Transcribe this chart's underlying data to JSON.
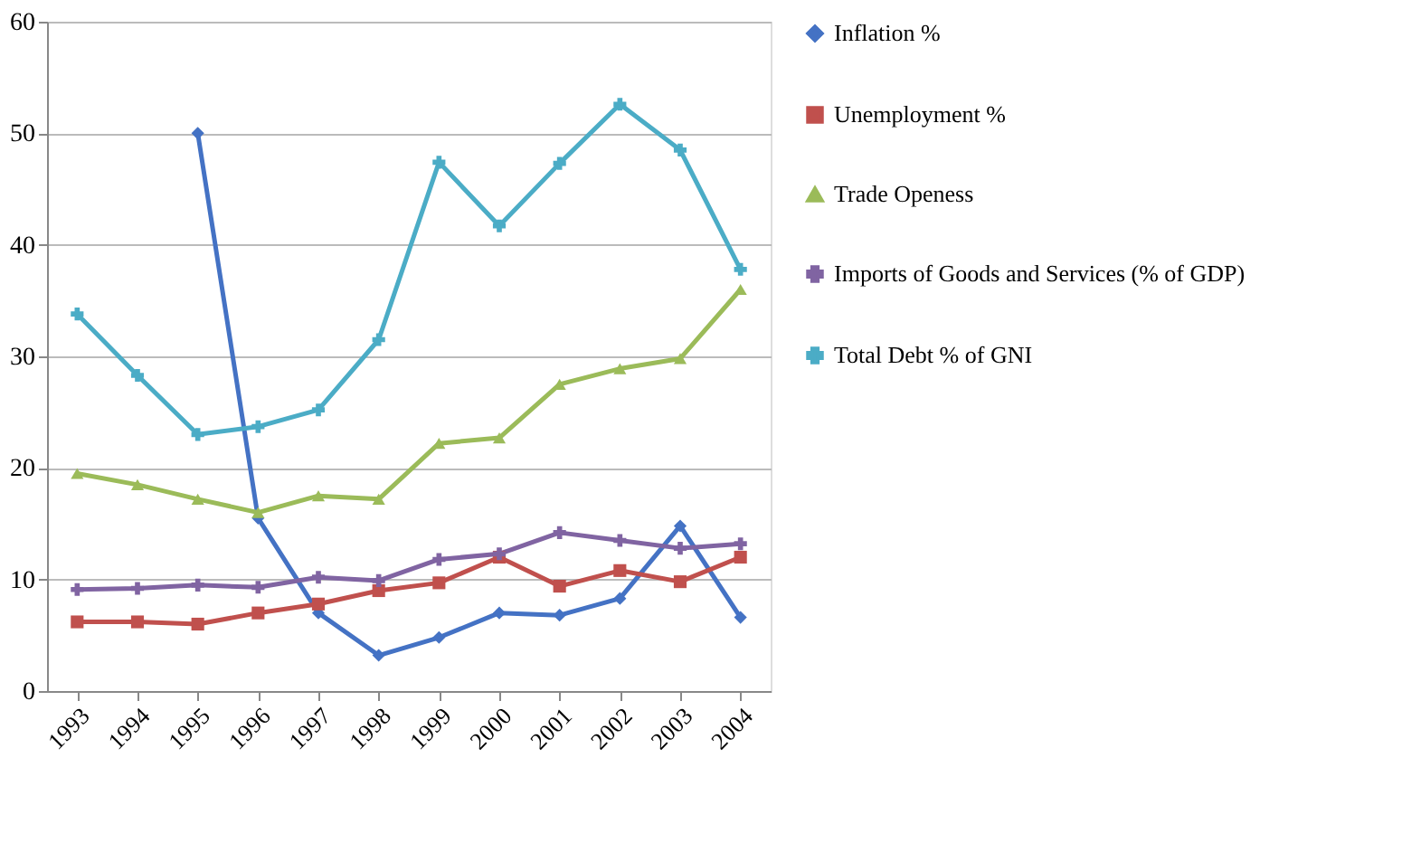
{
  "chart_data": {
    "type": "line",
    "categories": [
      "1993",
      "1994",
      "1995",
      "1996",
      "1997",
      "1998",
      "1999",
      "2000",
      "2001",
      "2002",
      "2003",
      "2004"
    ],
    "series": [
      {
        "name": "Inflation %",
        "color": "#4472c4",
        "marker": "diamond",
        "values": [
          null,
          null,
          50,
          15.5,
          7,
          3.2,
          4.8,
          7,
          6.8,
          8.3,
          14.8,
          6.6
        ]
      },
      {
        "name": "Unemployment %",
        "color": "#c0504d",
        "marker": "square",
        "values": [
          6.2,
          6.2,
          6.0,
          7.0,
          7.8,
          9.0,
          9.7,
          12.0,
          9.4,
          10.8,
          9.8,
          12.0
        ]
      },
      {
        "name": "Trade Openess",
        "color": "#9bbb59",
        "marker": "triangle",
        "values": [
          19.5,
          18.5,
          17.2,
          16.0,
          17.5,
          17.2,
          22.2,
          22.7,
          27.5,
          28.9,
          29.8,
          36.0
        ]
      },
      {
        "name": "Imports of Goods and Services (% of GDP)",
        "color": "#8064a2",
        "marker": "cross",
        "values": [
          9.1,
          9.2,
          9.5,
          9.3,
          10.2,
          9.9,
          11.8,
          12.3,
          14.2,
          13.5,
          12.8,
          13.2
        ]
      },
      {
        "name": "Total Debt % of GNI",
        "color": "#4bacc6",
        "marker": "cross",
        "values": [
          33.8,
          28.3,
          23.0,
          23.7,
          25.2,
          31.5,
          47.4,
          41.7,
          47.3,
          52.6,
          48.5,
          37.8
        ]
      }
    ],
    "ylim": [
      0,
      60
    ],
    "yticks": [
      0,
      10,
      20,
      30,
      40,
      50,
      60
    ],
    "grid": "y",
    "legend": "right"
  }
}
